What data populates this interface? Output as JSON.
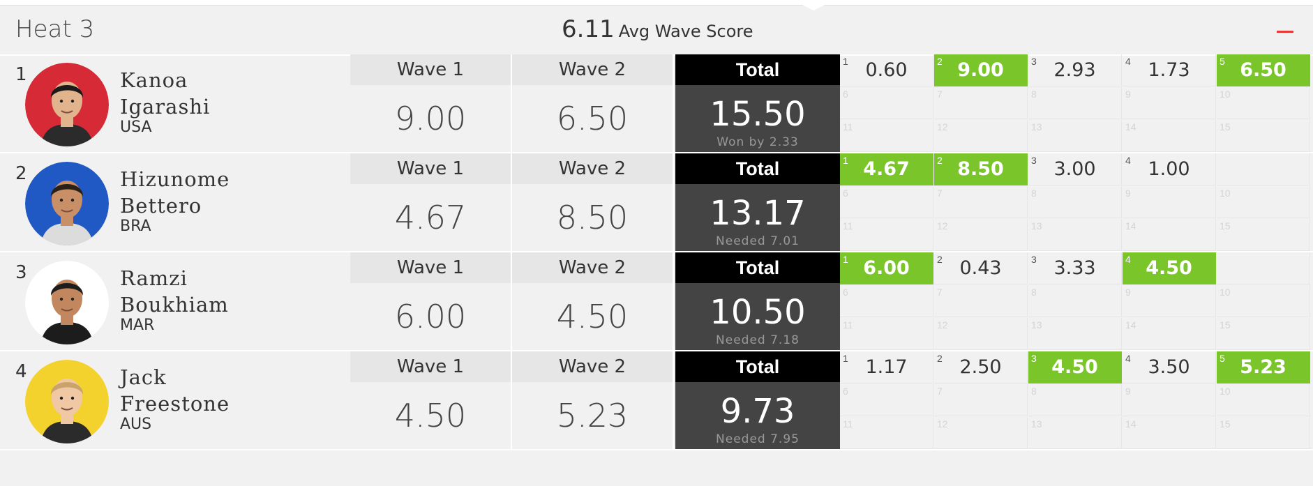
{
  "heat": {
    "title": "Heat 3",
    "avg_score": "6.11",
    "avg_label": "Avg Wave Score"
  },
  "labels": {
    "wave1": "Wave 1",
    "wave2": "Wave 2",
    "total": "Total"
  },
  "colors": {
    "best_wave": "#7ac62a",
    "total_header": "#000000",
    "total_body": "#444444",
    "collapse": "#e53935"
  },
  "surfers": [
    {
      "rank": "1",
      "first": "Kanoa",
      "last": "Igarashi",
      "country": "USA",
      "wave1": "9.00",
      "wave2": "6.50",
      "total": "15.50",
      "note": "Won by 2.33",
      "jersey": "#d62a36",
      "waves": [
        {
          "n": "1",
          "s": "0.60",
          "best": false
        },
        {
          "n": "2",
          "s": "9.00",
          "best": true
        },
        {
          "n": "3",
          "s": "2.93",
          "best": false
        },
        {
          "n": "4",
          "s": "1.73",
          "best": false
        },
        {
          "n": "5",
          "s": "6.50",
          "best": true
        }
      ]
    },
    {
      "rank": "2",
      "first": "Hizunome",
      "last": "Bettero",
      "country": "BRA",
      "wave1": "4.67",
      "wave2": "8.50",
      "total": "13.17",
      "note": "Needed 7.01",
      "jersey": "#2159c4",
      "waves": [
        {
          "n": "1",
          "s": "4.67",
          "best": true
        },
        {
          "n": "2",
          "s": "8.50",
          "best": true
        },
        {
          "n": "3",
          "s": "3.00",
          "best": false
        },
        {
          "n": "4",
          "s": "1.00",
          "best": false
        }
      ]
    },
    {
      "rank": "3",
      "first": "Ramzi",
      "last": "Boukhiam",
      "country": "MAR",
      "wave1": "6.00",
      "wave2": "4.50",
      "total": "10.50",
      "note": "Needed 7.18",
      "jersey": "#ffffff",
      "waves": [
        {
          "n": "1",
          "s": "6.00",
          "best": true
        },
        {
          "n": "2",
          "s": "0.43",
          "best": false
        },
        {
          "n": "3",
          "s": "3.33",
          "best": false
        },
        {
          "n": "4",
          "s": "4.50",
          "best": true
        }
      ]
    },
    {
      "rank": "4",
      "first": "Jack",
      "last": "Freestone",
      "country": "AUS",
      "wave1": "4.50",
      "wave2": "5.23",
      "total": "9.73",
      "note": "Needed 7.95",
      "jersey": "#f4d22e",
      "waves": [
        {
          "n": "1",
          "s": "1.17",
          "best": false
        },
        {
          "n": "2",
          "s": "2.50",
          "best": false
        },
        {
          "n": "3",
          "s": "4.50",
          "best": true
        },
        {
          "n": "4",
          "s": "3.50",
          "best": false
        },
        {
          "n": "5",
          "s": "5.23",
          "best": true
        }
      ]
    }
  ],
  "grid_cells": [
    [
      "6",
      "7",
      "8",
      "9",
      "10",
      "11",
      "12",
      "13",
      "14",
      "15"
    ],
    [
      "6",
      "7",
      "8",
      "9",
      "10",
      "11",
      "12",
      "13",
      "14",
      "15"
    ],
    [
      "6",
      "7",
      "8",
      "9",
      "10",
      "11",
      "12",
      "13",
      "14",
      "15"
    ],
    [
      "6",
      "7",
      "8",
      "9",
      "10",
      "11",
      "12",
      "13",
      "14",
      "15"
    ]
  ]
}
